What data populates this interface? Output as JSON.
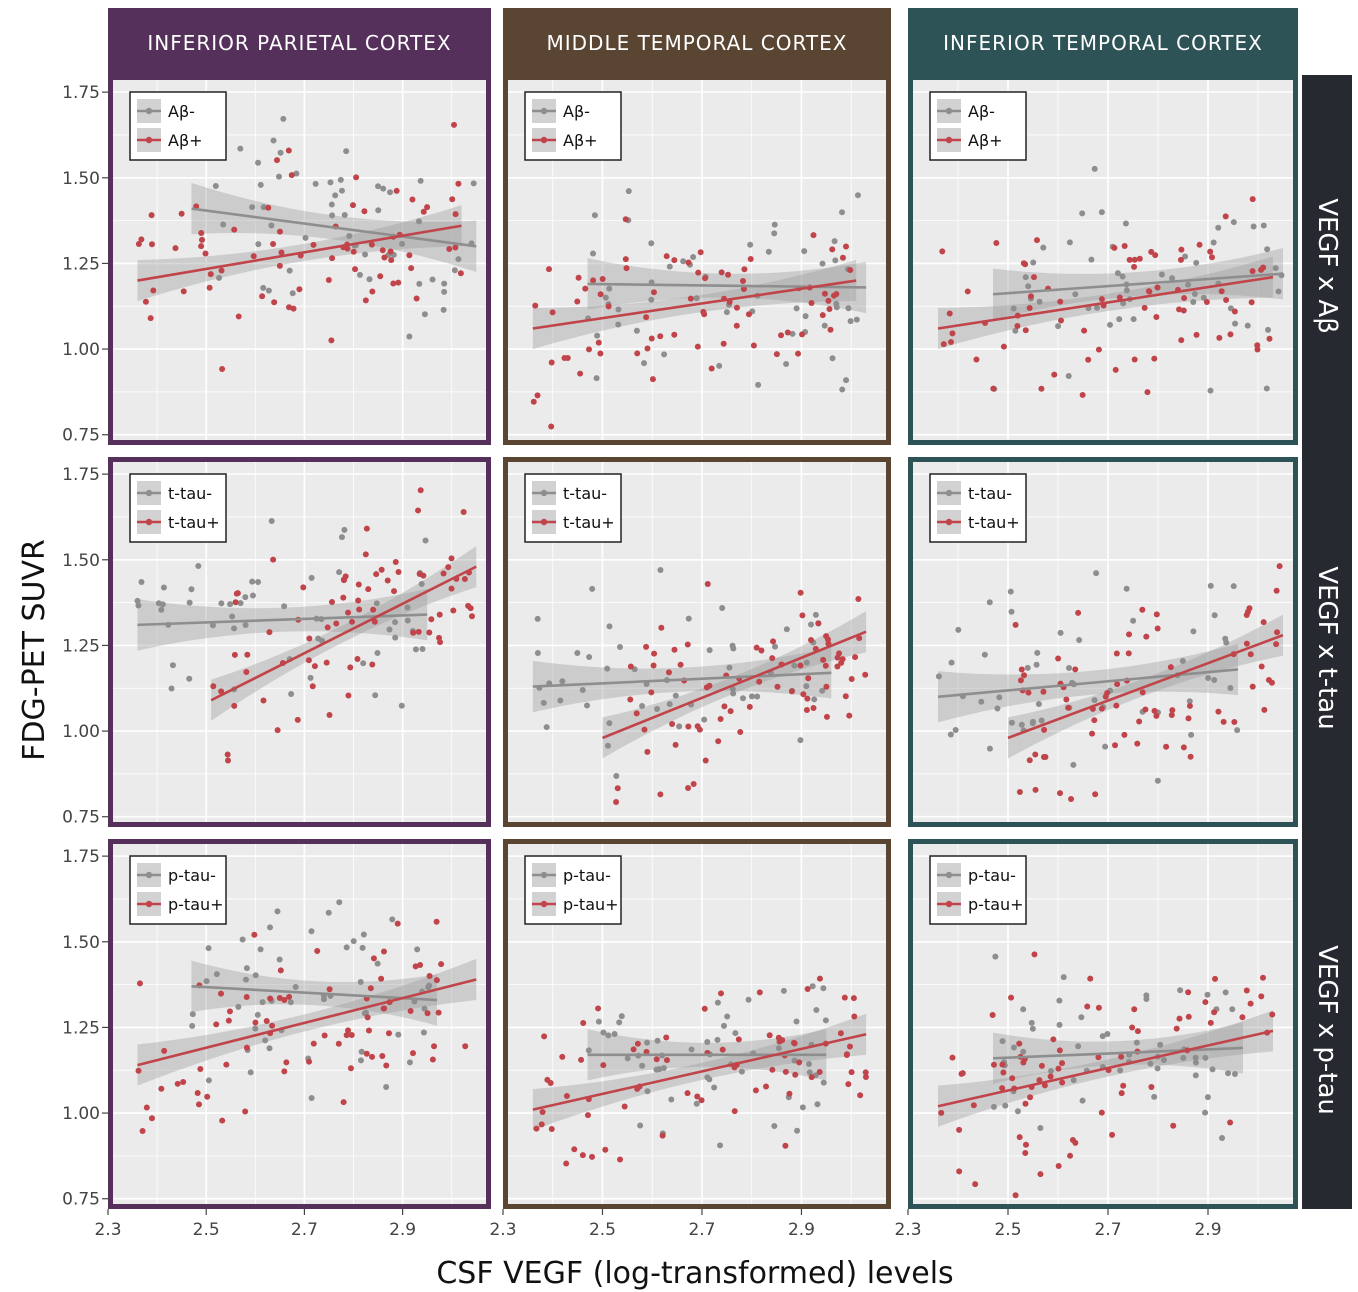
{
  "figure": {
    "ylabel": "FDG-PET SUVR",
    "xlabel": "CSF VEGF (log-transformed) levels",
    "columns": [
      {
        "title": "INFERIOR PARIETAL CORTEX",
        "color": "#54305a"
      },
      {
        "title": "MIDDLE TEMPORAL CORTEX",
        "color": "#5a4533"
      },
      {
        "title": "INFERIOR TEMPORAL CORTEX",
        "color": "#2e5356"
      }
    ],
    "rows": [
      {
        "strip": "VEGF x Aβ",
        "neg": "Aβ-",
        "pos": "Aβ+"
      },
      {
        "strip": "VEGF x t-tau",
        "neg": "t-tau-",
        "pos": "t-tau+"
      },
      {
        "strip": "VEGF x p-tau",
        "neg": "p-tau-",
        "pos": "p-tau+"
      }
    ],
    "yticks": [
      "0.75",
      "1.00",
      "1.25",
      "1.50",
      "1.75"
    ],
    "xticks": [
      "2.3",
      "2.5",
      "2.7",
      "2.9"
    ],
    "colors": {
      "neg": "#8e8e8e",
      "pos": "#c0444a",
      "panel_bg": "#ebebeb",
      "strip_bg": "#262a30"
    }
  },
  "chart_data": {
    "type": "scatter",
    "x_range": [
      2.3,
      3.08
    ],
    "y_range": [
      0.72,
      1.8
    ],
    "xticks": [
      2.3,
      2.5,
      2.7,
      2.9
    ],
    "yticks": [
      0.75,
      1.0,
      1.25,
      1.5,
      1.75
    ],
    "grid": true,
    "legend_position": "top-left",
    "panels": [
      {
        "row": 0,
        "col": 0,
        "neg": {
          "x": [
            2.47,
            3.05
          ],
          "y": [
            1.41,
            1.3
          ]
        },
        "pos": {
          "x": [
            2.36,
            3.02
          ],
          "y": [
            1.2,
            1.36
          ]
        }
      },
      {
        "row": 0,
        "col": 1,
        "neg": {
          "x": [
            2.47,
            3.03
          ],
          "y": [
            1.19,
            1.18
          ]
        },
        "pos": {
          "x": [
            2.36,
            3.01
          ],
          "y": [
            1.06,
            1.2
          ]
        }
      },
      {
        "row": 0,
        "col": 2,
        "neg": {
          "x": [
            2.47,
            3.05
          ],
          "y": [
            1.16,
            1.22
          ]
        },
        "pos": {
          "x": [
            2.36,
            3.03
          ],
          "y": [
            1.06,
            1.21
          ]
        }
      },
      {
        "row": 1,
        "col": 0,
        "neg": {
          "x": [
            2.36,
            2.95
          ],
          "y": [
            1.31,
            1.34
          ]
        },
        "pos": {
          "x": [
            2.51,
            3.05
          ],
          "y": [
            1.09,
            1.48
          ]
        }
      },
      {
        "row": 1,
        "col": 1,
        "neg": {
          "x": [
            2.36,
            2.96
          ],
          "y": [
            1.13,
            1.17
          ]
        },
        "pos": {
          "x": [
            2.5,
            3.03
          ],
          "y": [
            0.98,
            1.29
          ]
        }
      },
      {
        "row": 1,
        "col": 2,
        "neg": {
          "x": [
            2.36,
            2.96
          ],
          "y": [
            1.1,
            1.18
          ]
        },
        "pos": {
          "x": [
            2.5,
            3.05
          ],
          "y": [
            0.98,
            1.28
          ]
        }
      },
      {
        "row": 2,
        "col": 0,
        "neg": {
          "x": [
            2.47,
            2.97
          ],
          "y": [
            1.37,
            1.33
          ]
        },
        "pos": {
          "x": [
            2.36,
            3.05
          ],
          "y": [
            1.14,
            1.39
          ]
        }
      },
      {
        "row": 2,
        "col": 1,
        "neg": {
          "x": [
            2.47,
            2.95
          ],
          "y": [
            1.17,
            1.17
          ]
        },
        "pos": {
          "x": [
            2.36,
            3.03
          ],
          "y": [
            1.01,
            1.23
          ]
        }
      },
      {
        "row": 2,
        "col": 2,
        "neg": {
          "x": [
            2.47,
            2.97
          ],
          "y": [
            1.16,
            1.19
          ]
        },
        "pos": {
          "x": [
            2.36,
            3.03
          ],
          "y": [
            1.02,
            1.24
          ]
        }
      }
    ]
  }
}
